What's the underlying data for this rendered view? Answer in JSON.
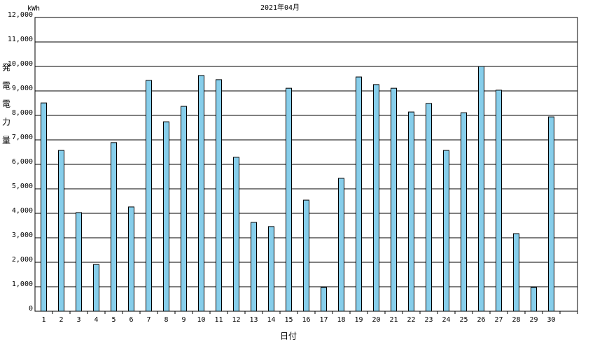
{
  "chart_data": {
    "type": "bar",
    "title": "2021年04月",
    "y_unit": "kWh",
    "y_label": "発電電力量",
    "x_label": "日付",
    "categories": [
      "1",
      "2",
      "3",
      "4",
      "5",
      "6",
      "7",
      "8",
      "9",
      "10",
      "11",
      "12",
      "13",
      "14",
      "15",
      "16",
      "17",
      "18",
      "19",
      "20",
      "21",
      "22",
      "23",
      "24",
      "25",
      "26",
      "27",
      "28",
      "29",
      "30",
      null
    ],
    "values": [
      8510,
      6570,
      4030,
      1910,
      6890,
      4260,
      9430,
      7740,
      8370,
      9630,
      9460,
      6290,
      3630,
      3460,
      9110,
      4540,
      970,
      5430,
      9570,
      9260,
      9110,
      8140,
      8490,
      6570,
      8110,
      10000,
      9030,
      3170,
      970,
      7940,
      null
    ],
    "color": "#87ceeb",
    "ylim": [
      0,
      12000
    ],
    "yticks": [
      0,
      {
        "value": 1000,
        "label": "1,000"
      },
      {
        "value": 2000,
        "label": "2,000"
      },
      {
        "value": 3000,
        "label": "3,000"
      },
      {
        "value": 4000,
        "label": "4,000"
      },
      {
        "value": 5000,
        "label": "5,000"
      },
      {
        "value": 6000,
        "label": "6,000"
      },
      {
        "value": 7000,
        "label": "7,000"
      },
      {
        "value": 8000,
        "label": "8,000"
      },
      {
        "value": 9000,
        "label": "9,000"
      },
      {
        "value": 10000,
        "label": "10,000"
      },
      {
        "value": 11000,
        "label": "11,000"
      },
      {
        "value": 12000,
        "label": "12,000"
      }
    ],
    "grid": true
  }
}
